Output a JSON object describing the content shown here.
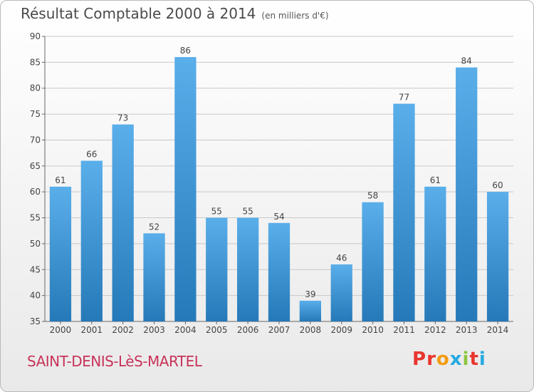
{
  "header": {
    "title": "Résultat Comptable 2000 à 2014",
    "unit": "(en milliers d'€)"
  },
  "footer": {
    "commune": "SAINT-DENIS-LèS-MARTEL"
  },
  "logo": {
    "text": "Proxiti",
    "colors": [
      "#e8352d",
      "#e8352d",
      "#f39c12",
      "#27a9e1",
      "#8cc63f",
      "#e8352d",
      "#27a9e1"
    ]
  },
  "colors": {
    "bar_light": "#5aaeea",
    "bar_dark": "#2679b8",
    "grid": "#c8c8c8"
  },
  "chart_data": {
    "type": "bar",
    "categories": [
      "2000",
      "2001",
      "2002",
      "2003",
      "2004",
      "2005",
      "2006",
      "2007",
      "2008",
      "2009",
      "2010",
      "2011",
      "2012",
      "2013",
      "2014"
    ],
    "values": [
      61,
      66,
      73,
      52,
      86,
      55,
      55,
      54,
      39,
      46,
      58,
      77,
      61,
      84,
      60
    ],
    "ylim": [
      35,
      90
    ],
    "yticks": [
      35,
      40,
      45,
      50,
      55,
      60,
      65,
      70,
      75,
      80,
      85,
      90
    ],
    "grid": true,
    "data_labels": true
  }
}
